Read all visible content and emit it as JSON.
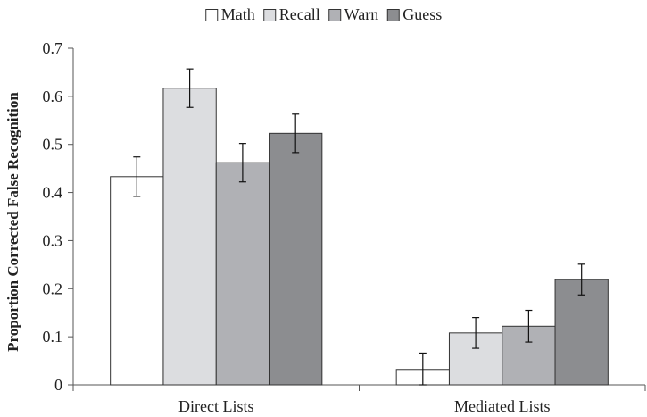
{
  "chart_data": {
    "type": "bar",
    "title": "",
    "xlabel": "",
    "ylabel": "Proportion Corrected False Recognition",
    "ylim": [
      0,
      0.7
    ],
    "yticks": [
      0,
      0.1,
      0.2,
      0.3,
      0.4,
      0.5,
      0.6,
      0.7
    ],
    "ytick_labels": [
      "0",
      "0.1",
      "0.2",
      "0.3",
      "0.4",
      "0.5",
      "0.6",
      "0.7"
    ],
    "categories": [
      "Direct Lists",
      "Mediated Lists"
    ],
    "legend_position": "top",
    "grid": false,
    "series": [
      {
        "name": "Math",
        "color": "#ffffff",
        "values": [
          0.433,
          0.032
        ],
        "errors": [
          0.041,
          0.034
        ]
      },
      {
        "name": "Recall",
        "color": "#dcdde0",
        "values": [
          0.617,
          0.108
        ],
        "errors": [
          0.04,
          0.032
        ]
      },
      {
        "name": "Warn",
        "color": "#b0b1b5",
        "values": [
          0.462,
          0.122
        ],
        "errors": [
          0.04,
          0.033
        ]
      },
      {
        "name": "Guess",
        "color": "#8c8d90",
        "values": [
          0.523,
          0.219
        ],
        "errors": [
          0.04,
          0.032
        ]
      }
    ]
  }
}
